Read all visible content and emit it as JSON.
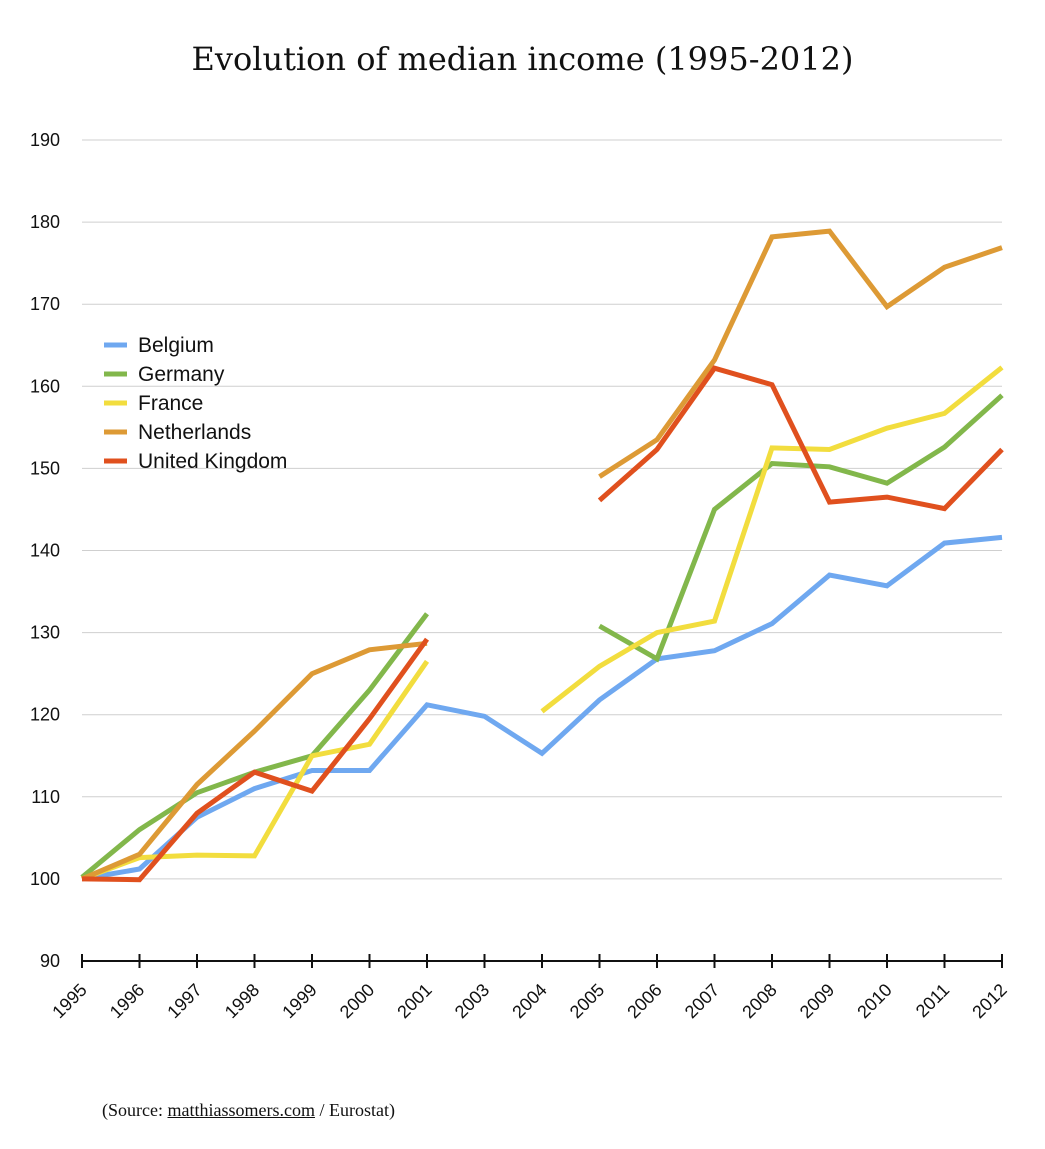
{
  "chart_data": {
    "type": "line",
    "title": "Evolution of median income (1995-2012)",
    "xlabel": "",
    "ylabel": "",
    "categories": [
      "1995",
      "1996",
      "1997",
      "1998",
      "1999",
      "2000",
      "2001",
      "2003",
      "2004",
      "2005",
      "2006",
      "2007",
      "2008",
      "2009",
      "2010",
      "2011",
      "2012"
    ],
    "ylim": [
      90,
      190
    ],
    "yticks": [
      90,
      100,
      110,
      120,
      130,
      140,
      150,
      160,
      170,
      180,
      190
    ],
    "grid": true,
    "legend_position": "left",
    "series": [
      {
        "name": "Belgium",
        "color": "#6fa8f0",
        "values": [
          100,
          101.2,
          107.5,
          111,
          113.2,
          113.2,
          121.2,
          119.8,
          115.3,
          121.8,
          126.8,
          127.8,
          131.1,
          137,
          135.7,
          140.9,
          141.6
        ]
      },
      {
        "name": "Germany",
        "color": "#82b74b",
        "values": [
          100.2,
          106,
          110.5,
          113,
          115,
          123,
          132.3,
          null,
          null,
          130.8,
          126.8,
          145,
          150.6,
          150.2,
          148.2,
          152.6,
          158.9
        ]
      },
      {
        "name": "France",
        "color": "#f2dd3e",
        "values": [
          100,
          102.6,
          102.9,
          102.8,
          115,
          116.4,
          126.5,
          null,
          120.4,
          125.9,
          130,
          131.4,
          152.5,
          152.3,
          154.9,
          156.7,
          162.3
        ]
      },
      {
        "name": "Netherlands",
        "color": "#dd9a35",
        "values": [
          100,
          103,
          111.5,
          118,
          125,
          127.9,
          128.7,
          null,
          null,
          149,
          153.5,
          163.2,
          178.2,
          178.9,
          169.7,
          174.5,
          176.9
        ]
      },
      {
        "name": "United Kingdom",
        "color": "#e0501e",
        "values": [
          100,
          99.9,
          108,
          113,
          110.7,
          119.5,
          129.2,
          null,
          null,
          146.1,
          152.3,
          162.2,
          160.2,
          145.9,
          146.5,
          145.1,
          152.3
        ]
      }
    ]
  },
  "source": {
    "prefix": "(Source: ",
    "link": "matthiassomers.com",
    "suffix": " / Eurostat)"
  }
}
